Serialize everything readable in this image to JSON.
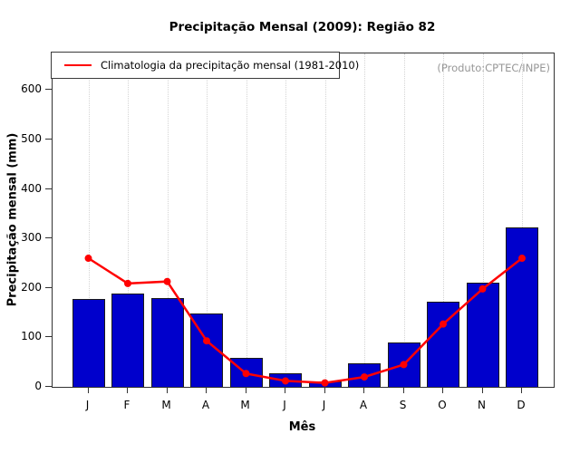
{
  "title": "Precipitação Mensal (2009): Região 82",
  "legend": {
    "label": "Climatologia da precipitação mensal (1981-2010)"
  },
  "watermark": "(Produto:CPTEC/INPE)",
  "colors": {
    "bar_fill": "#0000CC",
    "bar_border": "#1a1a1a",
    "line": "#FF0000",
    "grid": "#d4d4d4",
    "watermark_text": "#979797"
  },
  "chart_data": {
    "type": "bar",
    "title": "Precipitação Mensal (2009): Região 82",
    "xlabel": "Mês",
    "ylabel": "Precipitação mensal (mm)",
    "categories": [
      "J",
      "F",
      "M",
      "A",
      "M",
      "J",
      "J",
      "A",
      "S",
      "O",
      "N",
      "D"
    ],
    "series": [
      {
        "name": "Precipitação mensal 2009",
        "type": "bar",
        "color": "#0000CC",
        "values": [
          177,
          188,
          179,
          148,
          58,
          27,
          11,
          47,
          90,
          172,
          211,
          322
        ]
      },
      {
        "name": "Climatologia da precipitação mensal (1981-2010)",
        "type": "line",
        "color": "#FF0000",
        "values": [
          260,
          209,
          213,
          93,
          27,
          12,
          8,
          20,
          45,
          127,
          198,
          260
        ]
      }
    ],
    "yticks": [
      0,
      100,
      200,
      300,
      400,
      500,
      600
    ],
    "ylim": [
      0,
      674
    ],
    "grid": "vertical-dotted",
    "legend_position": "top-left"
  }
}
